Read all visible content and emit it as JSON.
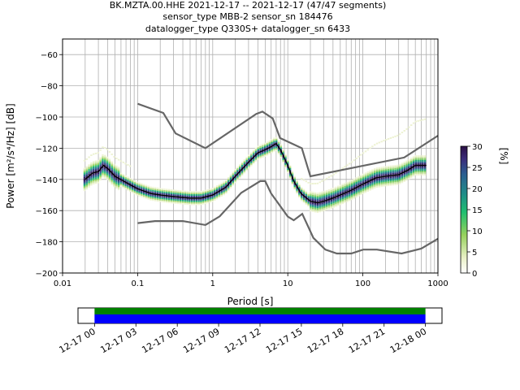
{
  "chart_data": [
    {
      "type": "heatmap",
      "title_lines": [
        "BK.MZTA.00.HHE   2021-12-17 -- 2021-12-17  (47/47 segments)",
        "sensor_type MBB-2 sensor_sn 184476",
        "datalogger_type Q330S+ datalogger_sn 6433"
      ],
      "xlabel": "Period [s]",
      "ylabel": "Power [m²/s⁴/Hz] [dB]",
      "x_scale": "log",
      "xlim": [
        0.01,
        1000
      ],
      "ylim": [
        -200,
        -50
      ],
      "x_ticks": [
        {
          "v": 0.01,
          "label": "0.01"
        },
        {
          "v": 0.1,
          "label": "0.1"
        },
        {
          "v": 1,
          "label": "1"
        },
        {
          "v": 10,
          "label": "10"
        },
        {
          "v": 100,
          "label": "100"
        },
        {
          "v": 1000,
          "label": "1000"
        }
      ],
      "y_ticks": [
        {
          "v": -60,
          "label": "−60"
        },
        {
          "v": -80,
          "label": "−80"
        },
        {
          "v": -100,
          "label": "−100"
        },
        {
          "v": -120,
          "label": "−120"
        },
        {
          "v": -140,
          "label": "−140"
        },
        {
          "v": -160,
          "label": "−160"
        },
        {
          "v": -180,
          "label": "−180"
        },
        {
          "v": -200,
          "label": "−200"
        }
      ],
      "grid": true,
      "colorbar": {
        "label": "[%]",
        "min": 0,
        "max": 30,
        "ticks": [
          {
            "v": 0,
            "label": "0"
          },
          {
            "v": 5,
            "label": "5"
          },
          {
            "v": 10,
            "label": "10"
          },
          {
            "v": 15,
            "label": "15"
          },
          {
            "v": 20,
            "label": "20"
          },
          {
            "v": 25,
            "label": "25"
          },
          {
            "v": 30,
            "label": "30"
          }
        ]
      },
      "noise_model_high": {
        "x": [
          0.1,
          0.22,
          0.32,
          0.8,
          3.8,
          4.6,
          6.3,
          7.9,
          15.4,
          20,
          354.8,
          1000
        ],
        "y": [
          -91.5,
          -97.4,
          -110.5,
          -120,
          -98,
          -96.5,
          -101,
          -113.5,
          -120,
          -138,
          -126,
          -112
        ]
      },
      "noise_model_low": {
        "x": [
          0.1,
          0.17,
          0.4,
          0.8,
          1.24,
          2.4,
          4.3,
          5,
          6,
          10,
          12,
          15.6,
          21.9,
          31.6,
          45,
          70,
          101,
          154,
          328,
          600,
          1000
        ],
        "y": [
          -168,
          -166.7,
          -166.7,
          -169.2,
          -163.7,
          -148.6,
          -141.1,
          -141.1,
          -149,
          -163.8,
          -166.2,
          -162.1,
          -177.5,
          -185,
          -187.5,
          -187.5,
          -185,
          -185,
          -187.5,
          -184.4,
          -178
        ]
      },
      "mode_curve": {
        "x": [
          0.02,
          0.025,
          0.03,
          0.035,
          0.04,
          0.05,
          0.07,
          0.1,
          0.15,
          0.2,
          0.3,
          0.5,
          0.7,
          1.0,
          1.5,
          2,
          3,
          4,
          5,
          6,
          7,
          8,
          10,
          12,
          15,
          20,
          25,
          30,
          40,
          50,
          70,
          100,
          150,
          200,
          300,
          400,
          500,
          600,
          700
        ],
        "y": [
          -140,
          -136,
          -135,
          -131,
          -133,
          -138,
          -142,
          -146,
          -149,
          -150,
          -151,
          -152,
          -152,
          -150,
          -145,
          -138,
          -129,
          -123,
          -121,
          -119,
          -117,
          -121,
          -131,
          -141,
          -149,
          -154,
          -155,
          -154,
          -152,
          -150,
          -147,
          -143,
          -139,
          -138,
          -137,
          -134,
          -131,
          -131,
          -131
        ]
      },
      "time_axis": {
        "ticks": [
          {
            "v": 0,
            "label": "12-17 00"
          },
          {
            "v": 3,
            "label": "12-17 03"
          },
          {
            "v": 6,
            "label": "12-17 06"
          },
          {
            "v": 9,
            "label": "12-17 09"
          },
          {
            "v": 12,
            "label": "12-17 12"
          },
          {
            "v": 15,
            "label": "12-17 15"
          },
          {
            "v": 18,
            "label": "12-17 18"
          },
          {
            "v": 21,
            "label": "12-17 21"
          },
          {
            "v": 24,
            "label": "12-18 00"
          }
        ],
        "range_hours": [
          -1.2,
          25.2
        ],
        "coverage_hours": [
          0,
          24
        ],
        "colors": {
          "data_available": "#008000",
          "used": "#0000ff"
        }
      }
    }
  ]
}
